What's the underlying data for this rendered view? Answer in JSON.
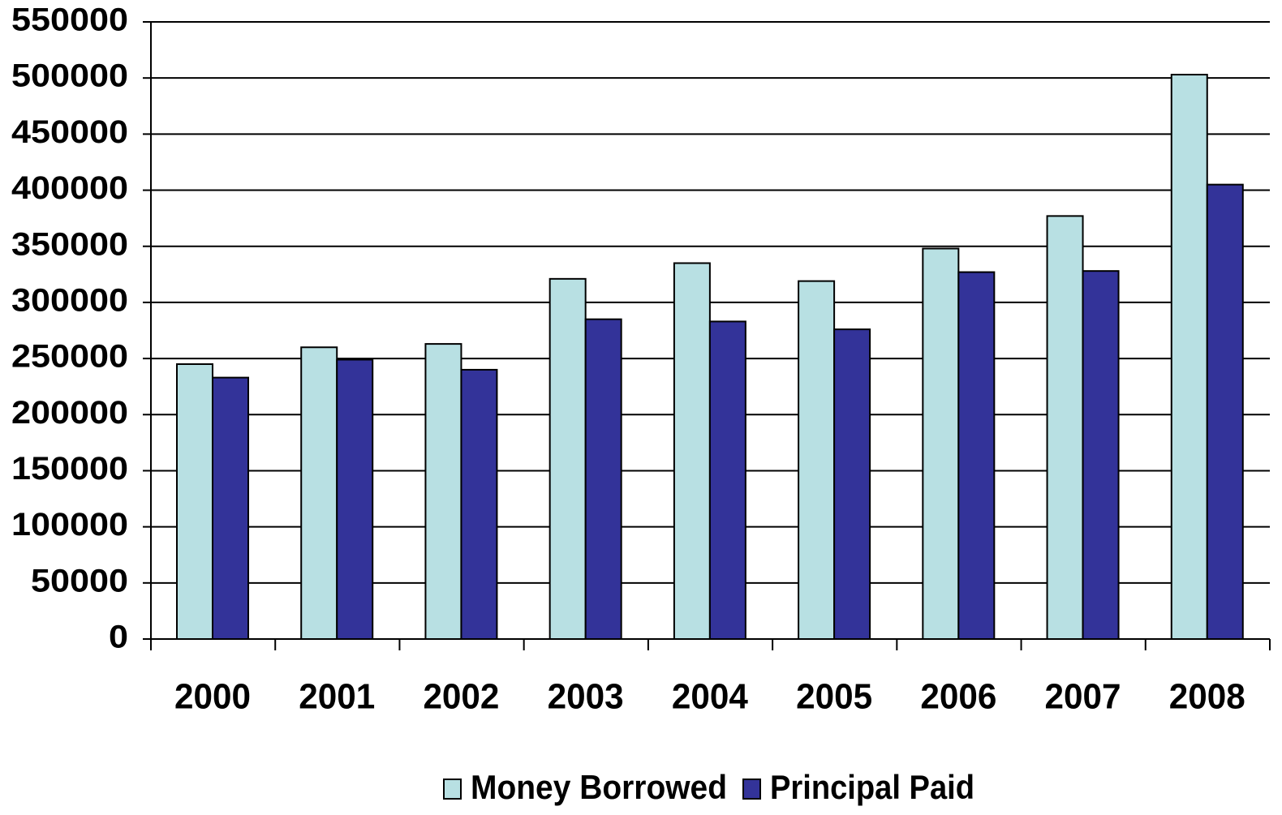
{
  "chart_data": {
    "type": "bar",
    "categories": [
      "2000",
      "2001",
      "2002",
      "2003",
      "2004",
      "2005",
      "2006",
      "2007",
      "2008"
    ],
    "series": [
      {
        "name": "Money Borrowed",
        "color": "#b8e0e3",
        "values": [
          245000,
          260000,
          263000,
          321000,
          335000,
          319000,
          348000,
          377000,
          503000
        ]
      },
      {
        "name": "Principal Paid",
        "color": "#333399",
        "values": [
          233000,
          249000,
          240000,
          285000,
          283000,
          276000,
          327000,
          328000,
          405000
        ]
      }
    ],
    "ylim": [
      0,
      550000
    ],
    "yticks": [
      0,
      50000,
      100000,
      150000,
      200000,
      250000,
      300000,
      350000,
      400000,
      450000,
      500000,
      550000
    ],
    "grid": true,
    "legend": "bottom"
  }
}
